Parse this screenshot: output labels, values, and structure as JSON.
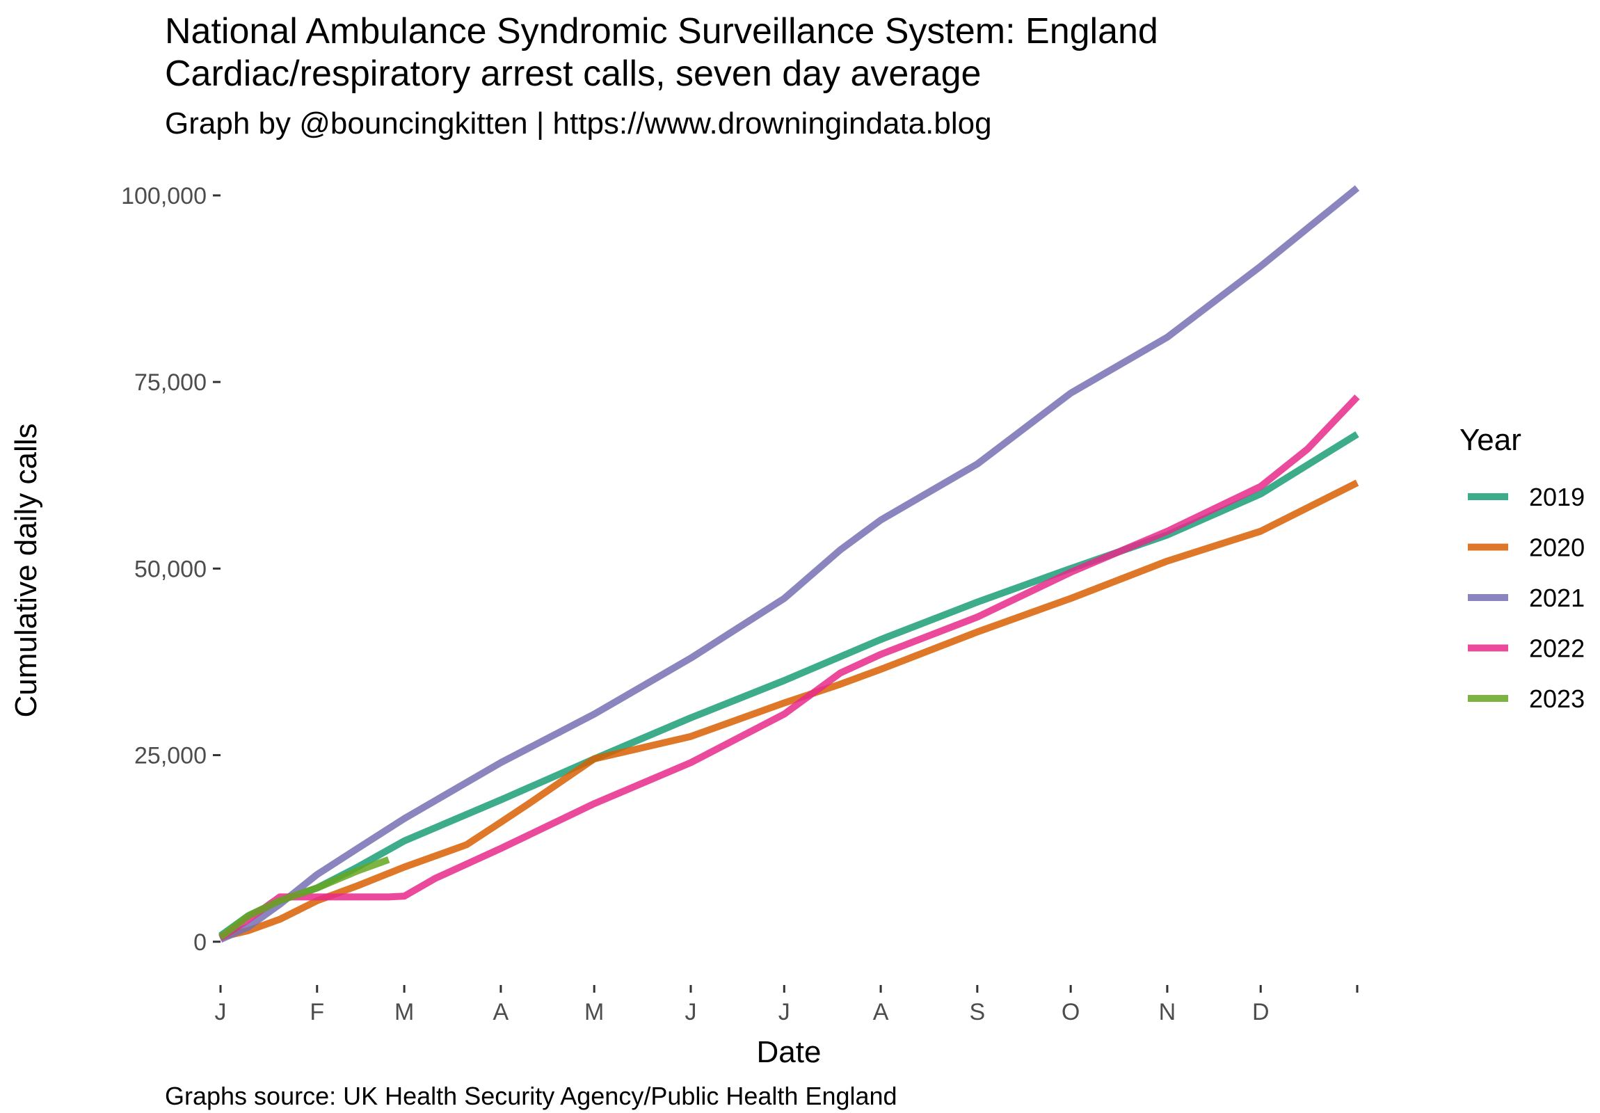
{
  "chart_data": {
    "type": "line",
    "title": "National Ambulance Syndromic Surveillance System: England",
    "title_line2": "Cardiac/respiratory arrest calls, seven day average",
    "subtitle": "Graph by @bouncingkitten | https://www.drowningindata.blog",
    "caption": "Graphs source: UK Health Security Agency/Public Health England",
    "xlabel": "Date",
    "ylabel": "Cumulative daily calls",
    "xlim": [
      1,
      366
    ],
    "ylim": [
      -5800,
      104000
    ],
    "x_ticks": [
      {
        "day": 1,
        "label": "J"
      },
      {
        "day": 32,
        "label": "F"
      },
      {
        "day": 60,
        "label": "M"
      },
      {
        "day": 91,
        "label": "A"
      },
      {
        "day": 121,
        "label": "M"
      },
      {
        "day": 152,
        "label": "J"
      },
      {
        "day": 182,
        "label": "J"
      },
      {
        "day": 213,
        "label": "A"
      },
      {
        "day": 244,
        "label": "S"
      },
      {
        "day": 274,
        "label": "O"
      },
      {
        "day": 305,
        "label": "N"
      },
      {
        "day": 335,
        "label": "D"
      },
      {
        "day": 366,
        "label": ""
      }
    ],
    "y_ticks": [
      {
        "value": 0,
        "label": "0"
      },
      {
        "value": 25000,
        "label": "25,000"
      },
      {
        "value": 50000,
        "label": "50,000"
      },
      {
        "value": 75000,
        "label": "75,000"
      },
      {
        "value": 100000,
        "label": "100,000"
      }
    ],
    "grid": false,
    "legend": {
      "title": "Year",
      "position": "right"
    },
    "series": [
      {
        "name": "2019",
        "color": "#1b9e77",
        "x": [
          1,
          10,
          20,
          32,
          45,
          60,
          91,
          121,
          152,
          182,
          213,
          244,
          274,
          305,
          335,
          366
        ],
        "y": [
          800,
          3500,
          5500,
          7200,
          10000,
          13500,
          19000,
          24500,
          30000,
          35000,
          40500,
          45500,
          50000,
          54500,
          60000,
          68000
        ]
      },
      {
        "name": "2020",
        "color": "#d95f02",
        "x": [
          1,
          10,
          20,
          32,
          45,
          60,
          80,
          91,
          100,
          121,
          152,
          182,
          200,
          213,
          244,
          274,
          305,
          335,
          366
        ],
        "y": [
          600,
          1500,
          3000,
          5500,
          7500,
          10000,
          13000,
          16000,
          18500,
          24500,
          27500,
          32000,
          34500,
          36500,
          41500,
          46000,
          51000,
          55000,
          61500
        ]
      },
      {
        "name": "2021",
        "color": "#7570b3",
        "x": [
          1,
          10,
          20,
          32,
          45,
          60,
          91,
          121,
          152,
          182,
          200,
          213,
          244,
          274,
          305,
          335,
          366
        ],
        "y": [
          300,
          2000,
          5000,
          9000,
          12500,
          16500,
          24000,
          30500,
          38000,
          46000,
          52500,
          56500,
          64000,
          73500,
          81000,
          90500,
          101000
        ]
      },
      {
        "name": "2022",
        "color": "#e7298a",
        "x": [
          1,
          10,
          20,
          32,
          45,
          55,
          60,
          70,
          91,
          121,
          152,
          182,
          200,
          213,
          244,
          274,
          305,
          335,
          350,
          366
        ],
        "y": [
          500,
          3000,
          6000,
          6000,
          6000,
          6000,
          6100,
          8500,
          12500,
          18500,
          24000,
          30500,
          36000,
          38500,
          43500,
          49500,
          55000,
          61000,
          66000,
          73000
        ]
      },
      {
        "name": "2023",
        "color": "#66a61e",
        "x": [
          1,
          10,
          20,
          32,
          45,
          55
        ],
        "y": [
          600,
          3500,
          5500,
          7200,
          9500,
          11000
        ]
      }
    ]
  }
}
